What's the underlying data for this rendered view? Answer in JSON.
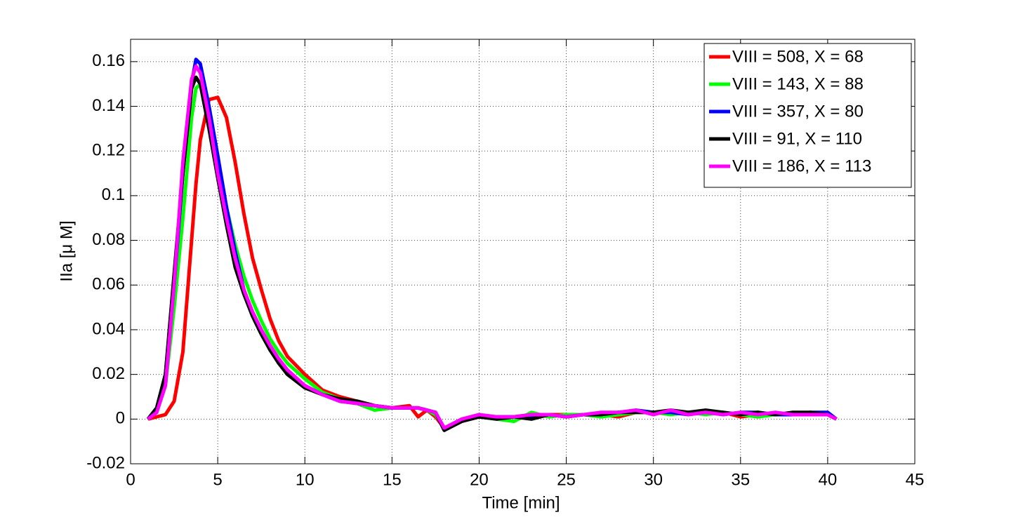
{
  "chart_data": {
    "type": "line",
    "xlabel": "Time [min]",
    "ylabel": "IIa [μ M]",
    "x": [
      1,
      1.5,
      2,
      2.5,
      3,
      3.5,
      3.75,
      4,
      4.5,
      5,
      5.5,
      6,
      6.5,
      7,
      7.5,
      8,
      8.5,
      9,
      10,
      11,
      12,
      13,
      14,
      15,
      16,
      16.5,
      17,
      17.5,
      18,
      19,
      20,
      21,
      22,
      23,
      24,
      25,
      26,
      27,
      28,
      29,
      30,
      31,
      32,
      33,
      34,
      35,
      36,
      37,
      38,
      39,
      40,
      40.5
    ],
    "series": [
      {
        "name": "VIII = 508, X = 68",
        "color": "#ff0000",
        "values": [
          0,
          0.001,
          0.002,
          0.008,
          0.03,
          0.08,
          0.105,
          0.125,
          0.143,
          0.144,
          0.135,
          0.115,
          0.092,
          0.072,
          0.058,
          0.045,
          0.035,
          0.028,
          0.02,
          0.013,
          0.01,
          0.008,
          0.006,
          0.005,
          0.006,
          0.001,
          0.004,
          0.001,
          -0.004,
          -0.001,
          0.001,
          0.001,
          0.001,
          0.002,
          0.002,
          0.002,
          0.002,
          0.002,
          0.001,
          0.003,
          0.003,
          0.003,
          0.003,
          0.003,
          0.003,
          0.001,
          0.002,
          0.002,
          0.002,
          0.002,
          0.002,
          0
        ]
      },
      {
        "name": "VIII = 143, X = 88",
        "color": "#00ff00",
        "values": [
          0,
          0.004,
          0.015,
          0.05,
          0.09,
          0.135,
          0.148,
          0.15,
          0.135,
          0.115,
          0.095,
          0.078,
          0.064,
          0.053,
          0.044,
          0.036,
          0.03,
          0.025,
          0.018,
          0.012,
          0.009,
          0.007,
          0.004,
          0.005,
          0.005,
          0.005,
          0.004,
          0.002,
          -0.004,
          0,
          0.001,
          0,
          -0.001,
          0.003,
          0.001,
          0.002,
          0.002,
          0.001,
          0.002,
          0.003,
          0.003,
          0.002,
          0.003,
          0.002,
          0.003,
          0.002,
          0.001,
          0.002,
          0.002,
          0.003,
          0.002,
          0
        ]
      },
      {
        "name": "VIII = 357, X = 80",
        "color": "#0000ff",
        "values": [
          0,
          0.005,
          0.02,
          0.06,
          0.11,
          0.15,
          0.161,
          0.159,
          0.14,
          0.118,
          0.095,
          0.075,
          0.058,
          0.047,
          0.039,
          0.031,
          0.026,
          0.021,
          0.015,
          0.011,
          0.008,
          0.007,
          0.006,
          0.005,
          0.005,
          0.005,
          0.004,
          0.003,
          -0.005,
          -0.001,
          0.001,
          0.001,
          0.001,
          0.001,
          0.002,
          0.001,
          0.002,
          0.002,
          0.003,
          0.004,
          0.003,
          0.003,
          0.002,
          0.003,
          0.002,
          0.003,
          0.003,
          0.002,
          0.002,
          0.003,
          0.003,
          0
        ]
      },
      {
        "name": "VIII = 91, X = 110",
        "color": "#000000",
        "values": [
          0,
          0.005,
          0.02,
          0.065,
          0.11,
          0.148,
          0.153,
          0.15,
          0.13,
          0.108,
          0.087,
          0.068,
          0.056,
          0.046,
          0.038,
          0.031,
          0.025,
          0.02,
          0.014,
          0.011,
          0.009,
          0.008,
          0.006,
          0.005,
          0.005,
          0.005,
          0.004,
          0.003,
          -0.005,
          -0.001,
          0.001,
          0,
          0.001,
          0,
          0.002,
          0.001,
          0.002,
          0.002,
          0.003,
          0.003,
          0.003,
          0.004,
          0.003,
          0.004,
          0.003,
          0.002,
          0.003,
          0.002,
          0.003,
          0.003,
          0.002,
          0
        ]
      },
      {
        "name": "VIII = 186, X = 113",
        "color": "#ff00ff",
        "values": [
          0,
          0.003,
          0.015,
          0.06,
          0.115,
          0.152,
          0.158,
          0.155,
          0.135,
          0.11,
          0.09,
          0.072,
          0.058,
          0.048,
          0.04,
          0.033,
          0.027,
          0.022,
          0.015,
          0.011,
          0.008,
          0.007,
          0.006,
          0.005,
          0.005,
          0.005,
          0.004,
          0.003,
          -0.004,
          0,
          0.002,
          0.001,
          0.001,
          0.002,
          0.002,
          0.001,
          0.002,
          0.003,
          0.003,
          0.004,
          0.002,
          0.004,
          0.002,
          0.003,
          0.002,
          0.003,
          0.002,
          0.003,
          0.002,
          0.002,
          0.002,
          0
        ]
      }
    ],
    "xlim": [
      0,
      45
    ],
    "xticks": [
      0,
      5,
      10,
      15,
      20,
      25,
      30,
      35,
      40,
      45
    ],
    "ylim": [
      -0.02,
      0.17
    ],
    "yticks": [
      -0.02,
      0,
      0.02,
      0.04,
      0.06,
      0.08,
      0.1,
      0.12,
      0.14,
      0.16
    ],
    "grid": true,
    "legend": "northeast"
  }
}
